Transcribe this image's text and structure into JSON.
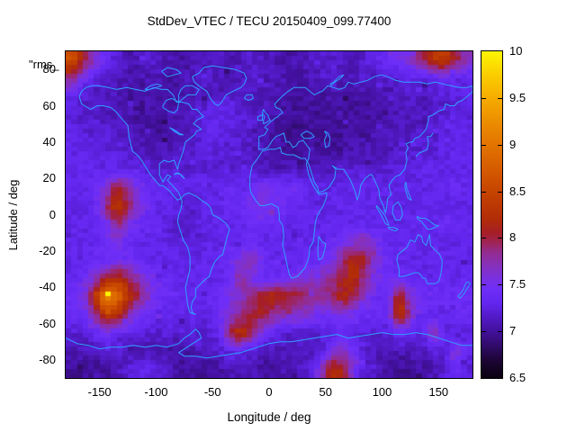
{
  "title": "StdDev_VTEC / TECU 20150409_099.77400",
  "stray_label": "\"rms_",
  "axes": {
    "x_label": "Longitude / deg",
    "y_label": "Latitude / deg",
    "x_ticks": [
      -150,
      -100,
      -50,
      0,
      50,
      100,
      150
    ],
    "y_ticks": [
      80,
      60,
      40,
      20,
      0,
      -20,
      -40,
      -60,
      -80
    ],
    "x_range": [
      -180,
      180
    ],
    "y_range": [
      -90,
      90
    ]
  },
  "colorbar": {
    "min": 6.5,
    "max": 10,
    "ticks": [
      6.5,
      7,
      7.5,
      8,
      8.5,
      9,
      9.5,
      10
    ],
    "tick_marks": [
      7,
      7.5,
      8,
      8.5,
      9,
      9.5
    ],
    "stops": [
      [
        6.5,
        "#0a0110"
      ],
      [
        6.7,
        "#1e0538"
      ],
      [
        6.85,
        "#310b6a"
      ],
      [
        7.0,
        "#42109c"
      ],
      [
        7.15,
        "#521ac6"
      ],
      [
        7.3,
        "#6226ee"
      ],
      [
        7.45,
        "#6e2ef8"
      ],
      [
        7.55,
        "#7830e4"
      ],
      [
        7.7,
        "#8630bc"
      ],
      [
        7.85,
        "#942c8e"
      ],
      [
        7.95,
        "#9e2456"
      ],
      [
        8.05,
        "#a51e28"
      ],
      [
        8.2,
        "#b12c08"
      ],
      [
        8.5,
        "#c64400"
      ],
      [
        8.75,
        "#d65c00"
      ],
      [
        9.0,
        "#e27400"
      ],
      [
        9.25,
        "#ec8e00"
      ],
      [
        9.5,
        "#f6ac00"
      ],
      [
        9.75,
        "#fbce00"
      ],
      [
        10.0,
        "#fdf503"
      ]
    ]
  },
  "map": {
    "coast_color": "#2fa0ff"
  },
  "chart_data": {
    "type": "heatmap",
    "units": "TECU",
    "grid": {
      "lon0": -180,
      "dlon": 10,
      "lat0": 90,
      "dlat": -10,
      "values": [
        [
          8.6,
          8.1,
          7.7,
          7.4,
          7.2,
          7.1,
          7.1,
          7.2,
          7.1,
          7.1,
          7.0,
          7.1,
          7.1,
          7.2,
          7.1,
          7.1,
          7.2,
          7.1,
          7.1,
          7.0,
          7.1,
          7.1,
          7.2,
          7.1,
          7.2,
          7.1,
          7.2,
          7.3,
          7.4,
          7.5,
          7.6,
          7.9,
          8.3,
          8.4,
          8.0,
          7.7
        ],
        [
          7.9,
          7.5,
          7.3,
          7.2,
          7.1,
          7.1,
          7.0,
          7.1,
          7.1,
          7.0,
          7.1,
          7.1,
          7.2,
          7.1,
          7.1,
          7.1,
          7.2,
          7.1,
          7.1,
          7.1,
          7.0,
          7.1,
          7.1,
          7.2,
          7.1,
          7.1,
          7.2,
          7.1,
          7.2,
          7.2,
          7.3,
          7.2,
          7.3,
          7.4,
          7.3,
          7.3
        ],
        [
          7.3,
          7.2,
          7.1,
          7.1,
          7.1,
          7.0,
          7.0,
          7.1,
          7.0,
          7.0,
          7.1,
          7.1,
          7.1,
          7.2,
          7.2,
          7.2,
          7.1,
          7.1,
          7.1,
          7.0,
          7.0,
          7.0,
          7.0,
          7.1,
          7.0,
          7.0,
          7.0,
          7.1,
          7.1,
          7.1,
          7.2,
          7.1,
          7.2,
          7.2,
          7.2,
          7.3
        ],
        [
          7.2,
          7.2,
          7.2,
          7.1,
          7.1,
          7.1,
          7.0,
          7.0,
          7.0,
          7.1,
          7.1,
          7.2,
          7.3,
          7.3,
          7.3,
          7.2,
          7.2,
          7.1,
          7.1,
          7.0,
          7.0,
          7.0,
          7.0,
          7.0,
          7.0,
          7.0,
          7.0,
          7.0,
          7.1,
          7.1,
          7.1,
          7.1,
          7.2,
          7.2,
          7.3,
          7.2
        ],
        [
          7.3,
          7.2,
          7.2,
          7.2,
          7.2,
          7.1,
          7.1,
          7.0,
          7.0,
          7.1,
          7.1,
          7.2,
          7.3,
          7.3,
          7.2,
          7.2,
          7.2,
          7.1,
          7.0,
          7.0,
          6.9,
          7.0,
          7.0,
          7.0,
          7.0,
          7.0,
          7.0,
          7.1,
          7.1,
          7.1,
          7.1,
          7.2,
          7.2,
          7.2,
          7.3,
          7.3
        ],
        [
          7.3,
          7.3,
          7.2,
          7.2,
          7.2,
          7.2,
          7.1,
          7.1,
          7.1,
          7.1,
          7.2,
          7.2,
          7.3,
          7.2,
          7.2,
          7.2,
          7.1,
          7.1,
          7.0,
          7.0,
          7.0,
          7.0,
          7.0,
          7.0,
          7.0,
          7.1,
          7.1,
          7.1,
          7.1,
          7.2,
          7.2,
          7.2,
          7.2,
          7.3,
          7.3,
          7.3
        ],
        [
          7.3,
          7.3,
          7.3,
          7.3,
          7.3,
          7.3,
          7.3,
          7.2,
          7.2,
          7.2,
          7.2,
          7.2,
          7.2,
          7.2,
          7.2,
          7.2,
          7.2,
          7.1,
          7.1,
          7.1,
          7.1,
          7.1,
          7.1,
          7.1,
          7.2,
          7.2,
          7.2,
          7.2,
          7.2,
          7.2,
          7.2,
          7.3,
          7.3,
          7.3,
          7.3,
          7.3
        ],
        [
          7.3,
          7.3,
          7.4,
          7.6,
          8.0,
          7.8,
          7.5,
          7.4,
          7.3,
          7.3,
          7.3,
          7.3,
          7.3,
          7.3,
          7.4,
          7.3,
          7.4,
          7.5,
          7.5,
          7.5,
          7.4,
          7.3,
          7.3,
          7.3,
          7.3,
          7.3,
          7.3,
          7.3,
          7.3,
          7.3,
          7.3,
          7.3,
          7.3,
          7.3,
          7.4,
          7.3
        ],
        [
          7.3,
          7.3,
          7.3,
          7.8,
          8.4,
          8.0,
          7.6,
          7.4,
          7.3,
          7.3,
          7.2,
          7.2,
          7.3,
          7.3,
          7.4,
          7.4,
          7.5,
          7.6,
          7.5,
          7.4,
          7.3,
          7.3,
          7.2,
          7.3,
          7.3,
          7.3,
          7.3,
          7.3,
          7.3,
          7.3,
          7.3,
          7.3,
          7.3,
          7.3,
          7.3,
          7.3
        ],
        [
          7.3,
          7.3,
          7.3,
          7.5,
          7.9,
          7.6,
          7.4,
          7.3,
          7.3,
          7.2,
          7.2,
          7.2,
          7.3,
          7.3,
          7.3,
          7.3,
          7.4,
          7.4,
          7.4,
          7.3,
          7.3,
          7.3,
          7.3,
          7.3,
          7.3,
          7.3,
          7.3,
          7.3,
          7.3,
          7.3,
          7.3,
          7.3,
          7.3,
          7.4,
          7.4,
          7.3
        ],
        [
          7.3,
          7.3,
          7.3,
          7.4,
          7.5,
          7.4,
          7.3,
          7.3,
          7.3,
          7.2,
          7.2,
          7.2,
          7.3,
          7.3,
          7.3,
          7.4,
          7.4,
          7.3,
          7.3,
          7.3,
          7.3,
          7.3,
          7.3,
          7.4,
          7.5,
          7.6,
          7.7,
          7.5,
          7.3,
          7.3,
          7.3,
          7.3,
          7.3,
          7.3,
          7.3,
          7.3
        ],
        [
          7.3,
          7.3,
          7.4,
          7.4,
          7.5,
          7.4,
          7.4,
          7.3,
          7.3,
          7.3,
          7.3,
          7.3,
          7.3,
          7.3,
          7.4,
          7.6,
          7.7,
          7.4,
          7.3,
          7.3,
          7.3,
          7.3,
          7.4,
          7.5,
          7.9,
          8.2,
          8.0,
          7.6,
          7.4,
          7.3,
          7.3,
          7.3,
          7.3,
          7.3,
          7.3,
          7.3
        ],
        [
          7.3,
          7.4,
          7.6,
          8.0,
          8.2,
          8.0,
          7.7,
          7.5,
          7.4,
          7.3,
          7.3,
          7.3,
          7.3,
          7.3,
          7.4,
          7.8,
          7.5,
          7.4,
          7.4,
          7.4,
          7.5,
          7.6,
          7.7,
          7.8,
          8.0,
          8.3,
          7.8,
          7.5,
          7.4,
          7.4,
          7.4,
          7.3,
          7.3,
          7.3,
          7.3,
          7.3
        ],
        [
          7.4,
          7.5,
          8.2,
          9.3,
          8.9,
          8.4,
          7.9,
          7.6,
          7.4,
          7.4,
          7.3,
          7.3,
          7.3,
          7.4,
          7.5,
          7.7,
          7.8,
          8.1,
          8.2,
          8.1,
          8.0,
          7.9,
          7.8,
          7.9,
          8.2,
          8.0,
          7.6,
          7.4,
          7.4,
          8.2,
          7.6,
          7.4,
          7.4,
          7.4,
          7.4,
          7.4
        ],
        [
          7.4,
          7.4,
          7.8,
          8.4,
          8.3,
          7.8,
          7.5,
          7.4,
          7.3,
          7.3,
          7.3,
          7.3,
          7.3,
          7.4,
          7.6,
          7.8,
          8.1,
          8.0,
          7.8,
          7.7,
          7.7,
          7.6,
          7.5,
          7.5,
          7.6,
          7.5,
          7.4,
          7.4,
          7.4,
          8.4,
          7.7,
          7.4,
          7.3,
          7.3,
          7.4,
          7.4
        ],
        [
          7.2,
          7.2,
          7.3,
          7.5,
          7.4,
          7.3,
          7.2,
          7.2,
          7.2,
          7.2,
          7.2,
          7.2,
          7.2,
          7.3,
          8.0,
          8.3,
          7.9,
          7.5,
          7.3,
          7.2,
          7.2,
          7.2,
          7.2,
          7.2,
          7.3,
          7.3,
          7.2,
          7.2,
          7.2,
          7.4,
          7.3,
          7.2,
          7.8,
          7.3,
          7.2,
          7.2
        ],
        [
          7.1,
          7.1,
          7.1,
          7.2,
          7.2,
          7.1,
          7.1,
          7.1,
          7.1,
          7.0,
          7.0,
          7.1,
          7.1,
          7.2,
          7.3,
          7.3,
          7.2,
          7.1,
          7.1,
          7.1,
          7.1,
          7.1,
          7.2,
          7.5,
          7.7,
          7.5,
          7.2,
          7.1,
          7.1,
          7.1,
          7.1,
          7.1,
          7.2,
          7.2,
          7.6,
          7.4
        ],
        [
          7.0,
          7.0,
          7.0,
          7.0,
          7.1,
          7.2,
          7.3,
          7.3,
          7.2,
          7.1,
          7.0,
          7.0,
          7.0,
          7.0,
          7.1,
          7.1,
          7.1,
          7.0,
          7.0,
          7.1,
          7.1,
          7.2,
          7.6,
          8.2,
          8.1,
          7.5,
          7.2,
          7.1,
          7.0,
          7.0,
          7.0,
          7.0,
          7.1,
          7.2,
          7.4,
          7.2
        ]
      ]
    },
    "hotspot_max": {
      "lon": -144,
      "lat": -44.4,
      "value": 10.0
    }
  }
}
